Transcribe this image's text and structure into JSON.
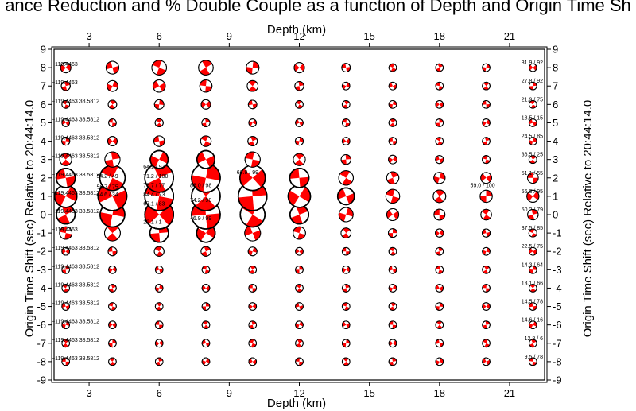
{
  "title": "ance Reduction and % Double Couple as a function of Depth and Origin Time Sh",
  "chart_data": {
    "type": "scatter",
    "xlabel": "Depth (km)",
    "ylabel": "Origin Time Shift (sec) Relative to 20:44:14.0",
    "xlim": [
      1.5,
      22.5
    ],
    "ylim": [
      -9,
      9
    ],
    "x_ticks": [
      3,
      6,
      9,
      12,
      15,
      18,
      21
    ],
    "y_ticks": [
      -9,
      -8,
      -7,
      -6,
      -5,
      -4,
      -3,
      -2,
      -1,
      0,
      1,
      2,
      3,
      4,
      5,
      6,
      7,
      8,
      9
    ],
    "depths": [
      2,
      4,
      6,
      8,
      10,
      12,
      14,
      16,
      18,
      20,
      22
    ],
    "time_shifts": [
      -8,
      -7,
      -6,
      -5,
      -4,
      -3,
      -2,
      -1,
      0,
      1,
      2,
      3,
      4,
      5,
      6,
      7,
      8
    ],
    "right_labels": [
      {
        "y": 8,
        "text": "31.9 / 92"
      },
      {
        "y": 7,
        "text": "27.8 / 92"
      },
      {
        "y": 6,
        "text": "21.9 / 75"
      },
      {
        "y": 5,
        "text": "18.5 / 15"
      },
      {
        "y": 4,
        "text": "24.5 / 85"
      },
      {
        "y": 3,
        "text": "36.5 / 25"
      },
      {
        "y": 2,
        "text": "51.1 / 55"
      },
      {
        "y": 1,
        "text": "56.3 / 95"
      },
      {
        "y": 0,
        "text": "50.2 / 79"
      },
      {
        "y": -1,
        "text": "37.5 / 85"
      },
      {
        "y": -2,
        "text": "22.5 / 75"
      },
      {
        "y": -3,
        "text": "14.3 / 64"
      },
      {
        "y": -4,
        "text": "13.1 / 66"
      },
      {
        "y": -5,
        "text": "14.5 / 78"
      },
      {
        "y": -6,
        "text": "14.6 / 16"
      },
      {
        "y": -7,
        "text": "12.8 / 6"
      },
      {
        "y": -8,
        "text": "9.5 / 78"
      }
    ],
    "left_labels": [
      {
        "y": 8,
        "text": "−119.4463"
      },
      {
        "y": 7,
        "text": "−119.4463"
      },
      {
        "y": 6,
        "text": "−119.4463 38.5812"
      },
      {
        "y": 5,
        "text": "−119.4463 38.5812"
      },
      {
        "y": 4,
        "text": "−119.4463 38.5812"
      },
      {
        "y": 3,
        "text": "−119.4463 38.5812"
      },
      {
        "y": 2,
        "text": "−119.4463 38.5812"
      },
      {
        "y": 1,
        "text": "−119.4463 38.5812"
      },
      {
        "y": 0,
        "text": "−119.4463 38.5812"
      },
      {
        "y": -1,
        "text": "−119.4463"
      },
      {
        "y": -2,
        "text": "−119.4463 38.5812"
      },
      {
        "y": -3,
        "text": "−119.4463 38.5812"
      },
      {
        "y": -4,
        "text": "−119.4463 38.5812"
      },
      {
        "y": -5,
        "text": "−119.4463 38.5812"
      },
      {
        "y": -6,
        "text": "−119.4463 38.5812"
      },
      {
        "y": -7,
        "text": "−119.4463 38.5812"
      },
      {
        "y": -8,
        "text": "−119.4463 38.5812"
      }
    ],
    "inner_labels": [
      {
        "x": 4,
        "y": 2,
        "text": "54.2 / 49"
      },
      {
        "x": 4,
        "y": 1.4,
        "text": "56.7 / 75"
      },
      {
        "x": 4,
        "y": 1,
        "text": "44.6 / 34"
      },
      {
        "x": 6,
        "y": 2.5,
        "text": "64.1 / 97"
      },
      {
        "x": 6,
        "y": 2,
        "text": "71.2 / 100"
      },
      {
        "x": 6,
        "y": 1.5,
        "text": "75.7 / 77"
      },
      {
        "x": 6,
        "y": 1,
        "text": "84.4 / 73"
      },
      {
        "x": 6,
        "y": 0.5,
        "text": "67.1 / 83"
      },
      {
        "x": 6,
        "y": -0.5,
        "text": "22.1 / 1"
      },
      {
        "x": 8,
        "y": 1.5,
        "text": "86.0 / 98"
      },
      {
        "x": 8,
        "y": 0.7,
        "text": "74.2 / 98"
      },
      {
        "x": 8,
        "y": -0.3,
        "text": "46.9 / 99"
      },
      {
        "x": 10,
        "y": 2.2,
        "text": "66.9 / 99"
      },
      {
        "x": 20,
        "y": 1.5,
        "text": "59.0 / 100"
      }
    ],
    "colors": {
      "fill": "#ff0000",
      "outline": "#000000"
    }
  }
}
